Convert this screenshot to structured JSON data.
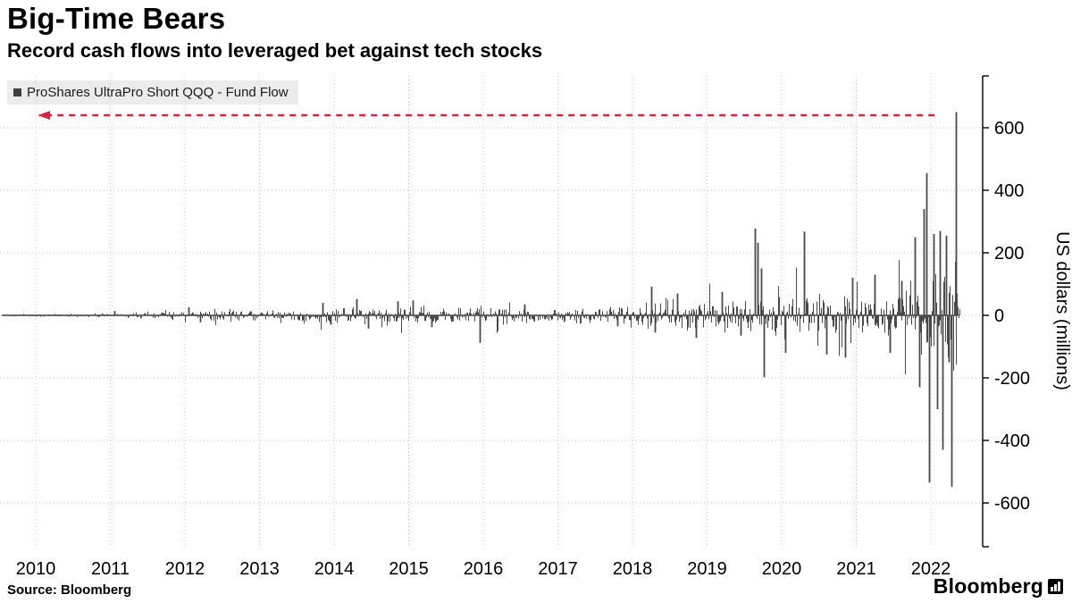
{
  "header": {
    "title": "Big-Time Bears",
    "subtitle": "Record cash flows into leveraged bet against tech stocks"
  },
  "legend": {
    "label": "ProShares UltraPro Short QQQ - Fund Flow",
    "marker_color": "#3f3f3f"
  },
  "footer": {
    "source_text": "Source: Bloomberg",
    "brand": "Bloomberg"
  },
  "chart_data": {
    "type": "bar",
    "title": "Big-Time Bears",
    "subtitle": "Record cash flows into leveraged bet against tech stocks",
    "series_name": "ProShares UltraPro Short QQQ - Fund Flow",
    "ylabel": "US dollars (millions)",
    "ylim": [
      -700,
      700
    ],
    "yticks": [
      600,
      400,
      200,
      0,
      -200,
      -400,
      -600
    ],
    "xticks": [
      2010,
      2011,
      2012,
      2013,
      2014,
      2015,
      2016,
      2017,
      2018,
      2019,
      2020,
      2021,
      2022
    ],
    "x_domain": [
      2009.55,
      2022.38
    ],
    "grid": true,
    "legend_position": "top-left",
    "bar_color": "#4a4a4a",
    "grid_color": "#c9c9c9",
    "axis_color": "#000000",
    "annotation_arrow": {
      "y_value": 640,
      "x_from": 2022.05,
      "x_to": 2010.05,
      "color": "#d5263e",
      "style": "dashed"
    },
    "seed": 1337,
    "volatility_profile": [
      [
        2009.55,
        3
      ],
      [
        2010.5,
        4
      ],
      [
        2011.2,
        6
      ],
      [
        2012.0,
        13
      ],
      [
        2012.5,
        15
      ],
      [
        2013.2,
        9
      ],
      [
        2013.9,
        20
      ],
      [
        2014.5,
        25
      ],
      [
        2015.2,
        23
      ],
      [
        2016.0,
        20
      ],
      [
        2016.8,
        17
      ],
      [
        2017.5,
        19
      ],
      [
        2018.2,
        32
      ],
      [
        2018.8,
        36
      ],
      [
        2019.4,
        38
      ],
      [
        2019.8,
        55
      ],
      [
        2020.3,
        52
      ],
      [
        2020.8,
        52
      ],
      [
        2021.3,
        48
      ],
      [
        2021.8,
        72
      ],
      [
        2022.0,
        105
      ],
      [
        2022.2,
        125
      ],
      [
        2022.38,
        145
      ]
    ],
    "notable_bars": [
      [
        2011.05,
        14
      ],
      [
        2012.05,
        26
      ],
      [
        2012.2,
        -22
      ],
      [
        2013.85,
        40
      ],
      [
        2013.95,
        -30
      ],
      [
        2014.3,
        52
      ],
      [
        2014.45,
        -42
      ],
      [
        2014.85,
        45
      ],
      [
        2015.05,
        48
      ],
      [
        2015.3,
        -38
      ],
      [
        2015.95,
        -88
      ],
      [
        2016.55,
        35
      ],
      [
        2017.8,
        -35
      ],
      [
        2018.25,
        92
      ],
      [
        2018.3,
        -55
      ],
      [
        2018.6,
        70
      ],
      [
        2018.85,
        -72
      ],
      [
        2019.2,
        75
      ],
      [
        2019.45,
        -65
      ],
      [
        2019.64,
        278
      ],
      [
        2019.68,
        232
      ],
      [
        2019.72,
        150
      ],
      [
        2019.76,
        -198
      ],
      [
        2020.05,
        -120
      ],
      [
        2020.3,
        268
      ],
      [
        2020.6,
        -125
      ],
      [
        2020.85,
        -135
      ],
      [
        2020.95,
        120
      ],
      [
        2021.25,
        130
      ],
      [
        2021.45,
        -120
      ],
      [
        2021.6,
        110
      ],
      [
        2021.78,
        250
      ],
      [
        2021.84,
        -230
      ],
      [
        2021.9,
        340
      ],
      [
        2021.94,
        455
      ],
      [
        2021.98,
        -535
      ],
      [
        2022.04,
        260
      ],
      [
        2022.08,
        -300
      ],
      [
        2022.12,
        270
      ],
      [
        2022.16,
        -430
      ],
      [
        2022.2,
        255
      ],
      [
        2022.24,
        -150
      ],
      [
        2022.28,
        -548
      ],
      [
        2022.33,
        650
      ]
    ]
  }
}
